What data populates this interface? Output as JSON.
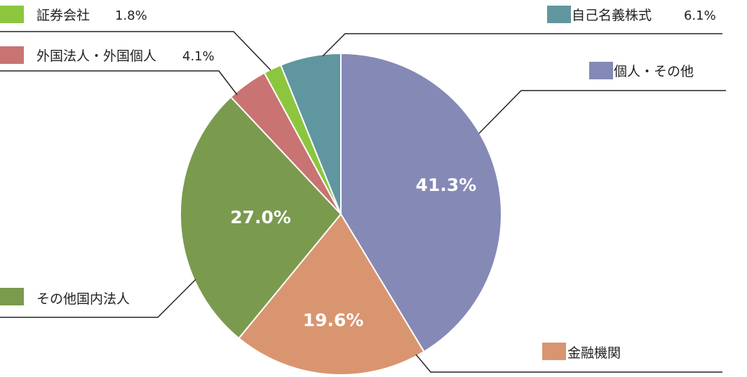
{
  "chart_data": {
    "type": "pie",
    "start_angle_deg": 0,
    "direction": "clockwise",
    "slices": [
      {
        "label": "個人・その他",
        "value": 41.3,
        "value_text": "41.3%",
        "show_inside": true,
        "show_in_legend": false,
        "color": "#8589b5"
      },
      {
        "label": "金融機関",
        "value": 19.6,
        "value_text": "19.6%",
        "show_inside": true,
        "show_in_legend": false,
        "color": "#d99570"
      },
      {
        "label": "その他国内法人",
        "value": 27.0,
        "value_text": "27.0%",
        "show_inside": true,
        "show_in_legend": false,
        "color": "#7a9a4e"
      },
      {
        "label": "外国法人・外国個人",
        "value": 4.1,
        "value_text": "4.1%",
        "show_inside": false,
        "show_in_legend": true,
        "color": "#c97373"
      },
      {
        "label": "証券会社",
        "value": 1.8,
        "value_text": "1.8%",
        "show_inside": false,
        "show_in_legend": true,
        "color": "#8cc63f"
      },
      {
        "label": "自己名義株式",
        "value": 6.1,
        "value_text": "6.1%",
        "show_inside": false,
        "show_in_legend": true,
        "color": "#6096a0"
      }
    ]
  }
}
